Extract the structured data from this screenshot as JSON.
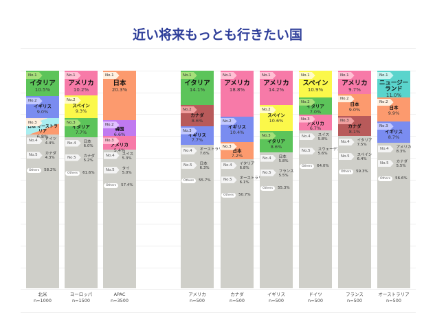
{
  "title": "近い将来もっとも行きたい国",
  "colors": {
    "イタリア": "#5cc45a",
    "イギリス": "#7a8cf0",
    "アメリカ": "#f77aa8",
    "スペイン": "#fbf84a",
    "日本": "#fc9a6e",
    "韓国": "#c07af0",
    "カナダ": "#b85a5a",
    "ニュージーランド": "#5ad4cc",
    "オーストラリア": "#a9eef0",
    "other": "#cfcfc9"
  },
  "chart_data": {
    "type": "bar",
    "title": "近い将来もっとも行きたい国",
    "unit": "%",
    "columns": [
      {
        "label": "北米",
        "n": "n=1000",
        "top": [
          {
            "rank": "No.1",
            "name": "イタリア",
            "value": 10.5
          },
          {
            "rank": "No.2",
            "name": "イギリス",
            "value": 9.0
          },
          {
            "rank": "No.3",
            "name": "日本 / オーストラリア",
            "value": 6.8
          }
        ],
        "low": [
          {
            "rank": "No.4",
            "name": "ドイツ",
            "value": 4.4
          },
          {
            "rank": "No.5",
            "name": "カナダ",
            "value": 4.3
          },
          {
            "rank": "Others",
            "name": "",
            "value": 58.2
          }
        ]
      },
      {
        "label": "ヨーロッパ",
        "n": "n=1500",
        "top": [
          {
            "rank": "No.1",
            "name": "アメリカ",
            "value": 10.2
          },
          {
            "rank": "No.2",
            "name": "スペイン",
            "value": 9.3
          },
          {
            "rank": "No.3",
            "name": "イタリア",
            "value": 7.7
          }
        ],
        "low": [
          {
            "rank": "No.4",
            "name": "日本",
            "value": 6.0
          },
          {
            "rank": "No.5",
            "name": "カナダ",
            "value": 5.2
          },
          {
            "rank": "Others",
            "name": "",
            "value": 61.6
          }
        ]
      },
      {
        "label": "APAC",
        "n": "n=3500",
        "top": [
          {
            "rank": "No.1",
            "name": "日本",
            "value": 20.3
          },
          {
            "rank": "No.2",
            "name": "韓国",
            "value": 6.6
          },
          {
            "rank": "No.3",
            "name": "アメリカ",
            "value": 5.4
          }
        ],
        "low": [
          {
            "rank": "No.4",
            "name": "スイス",
            "value": 5.3
          },
          {
            "rank": "No.5",
            "name": "タイ",
            "value": 5.0
          },
          {
            "rank": "Others",
            "name": "",
            "value": 57.4
          }
        ]
      },
      {
        "label": "アメリカ",
        "n": "n=500",
        "top": [
          {
            "rank": "No.1",
            "name": "イタリア",
            "value": 14.1
          },
          {
            "rank": "No.2",
            "name": "カナダ",
            "value": 8.6
          },
          {
            "rank": "No.3",
            "name": "イギリス",
            "value": 7.7
          }
        ],
        "low": [
          {
            "rank": "No.4",
            "name": "オーストラリア",
            "value": 7.6
          },
          {
            "rank": "No.5",
            "name": "日本",
            "value": 6.3
          },
          {
            "rank": "Others",
            "name": "",
            "value": 55.7
          }
        ]
      },
      {
        "label": "カナダ",
        "n": "n=500",
        "top": [
          {
            "rank": "No.1",
            "name": "アメリカ",
            "value": 18.8
          },
          {
            "rank": "No.2",
            "name": "イギリス",
            "value": 10.4
          },
          {
            "rank": "No.3",
            "name": "日本",
            "value": 7.2
          }
        ],
        "low": [
          {
            "rank": "No.4",
            "name": "イタリア",
            "value": 6.8
          },
          {
            "rank": "No.5",
            "name": "オーストラリア",
            "value": 6.1
          },
          {
            "rank": "Others",
            "name": "",
            "value": 50.7
          }
        ]
      },
      {
        "label": "イギリス",
        "n": "n=500",
        "top": [
          {
            "rank": "No.1",
            "name": "アメリカ",
            "value": 14.2
          },
          {
            "rank": "No.2",
            "name": "スペイン",
            "value": 10.6
          },
          {
            "rank": "No.3",
            "name": "イタリア",
            "value": 8.6
          }
        ],
        "low": [
          {
            "rank": "No.4",
            "name": "日本",
            "value": 5.8
          },
          {
            "rank": "No.5",
            "name": "フランス",
            "value": 5.5
          },
          {
            "rank": "Others",
            "name": "",
            "value": 55.3
          }
        ]
      },
      {
        "label": "ドイツ",
        "n": "n=500",
        "top": [
          {
            "rank": "No.1",
            "name": "スペイン",
            "value": 10.9
          },
          {
            "rank": "No.2",
            "name": "イタリア",
            "value": 7.0
          },
          {
            "rank": "No.3",
            "name": "アメリカ",
            "value": 6.7
          }
        ],
        "low": [
          {
            "rank": "No.4",
            "name": "スイス",
            "value": 5.8
          },
          {
            "rank": "No.5",
            "name": "スウェーデン",
            "value": 5.6
          },
          {
            "rank": "Others",
            "name": "",
            "value": 64.0
          }
        ]
      },
      {
        "label": "フランス",
        "n": "n=500",
        "top": [
          {
            "rank": "No.1",
            "name": "アメリカ",
            "value": 9.7
          },
          {
            "rank": "No.2",
            "name": "日本",
            "value": 9.0
          },
          {
            "rank": "No.3",
            "name": "カナダ",
            "value": 8.1
          }
        ],
        "low": [
          {
            "rank": "No.4",
            "name": "イタリア",
            "value": 7.5
          },
          {
            "rank": "No.5",
            "name": "スペイン",
            "value": 6.4
          },
          {
            "rank": "Others",
            "name": "",
            "value": 59.3
          }
        ]
      },
      {
        "label": "オーストラリア",
        "n": "n=500",
        "top": [
          {
            "rank": "No.1",
            "name": "ニュージーランド",
            "value": 11.0
          },
          {
            "rank": "No.2",
            "name": "日本",
            "value": 9.9
          },
          {
            "rank": "No.3",
            "name": "イギリス",
            "value": 8.7
          }
        ],
        "low": [
          {
            "rank": "No.4",
            "name": "アメリカ",
            "value": 8.3
          },
          {
            "rank": "No.5",
            "name": "カナダ",
            "value": 5.5
          },
          {
            "rank": "Others",
            "name": "",
            "value": 56.6
          }
        ]
      }
    ]
  }
}
